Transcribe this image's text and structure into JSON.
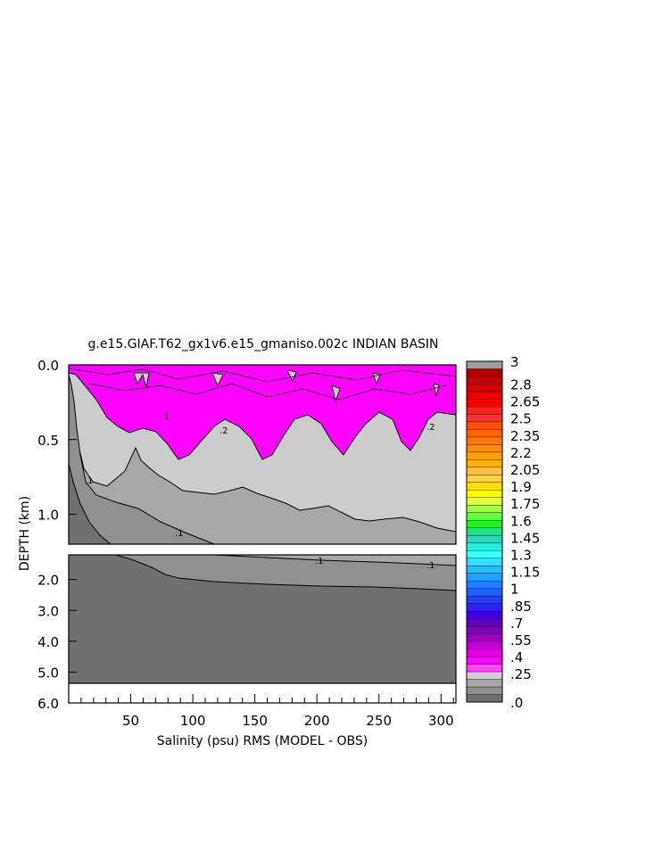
{
  "chart_data": {
    "type": "heatmap",
    "title": "g.e15.GIAF.T62_gx1v6.e15_gmaniso.002c INDIAN BASIN",
    "xlabel": "Salinity (psu) RMS (MODEL - OBS)",
    "ylabel": "DEPTH (km)",
    "x_ticks": [
      "50",
      "100",
      "150",
      "200",
      "250",
      "300"
    ],
    "x_tick_values": [
      50,
      100,
      150,
      200,
      250,
      300
    ],
    "xlim": [
      0,
      312
    ],
    "y_ticks_upper": [
      "0.0",
      "0.5",
      "1.0"
    ],
    "y_tick_values_upper": [
      0.0,
      0.5,
      1.0
    ],
    "ylim_upper": [
      0.0,
      1.2
    ],
    "y_ticks_lower": [
      "2.0",
      "3.0",
      "4.0",
      "5.0",
      "6.0"
    ],
    "y_tick_values_lower": [
      2.0,
      3.0,
      4.0,
      5.0,
      6.0
    ],
    "ylim_lower": [
      1.2,
      6.0
    ],
    "contour_labels": [
      ".1",
      ".1",
      ".1",
      ".1",
      ".1",
      ".2",
      ".2"
    ],
    "colorbar": {
      "labels": [
        "3",
        "2.8",
        "2.65",
        "2.5",
        "2.35",
        "2.2",
        "2.05",
        "1.9",
        "1.75",
        "1.6",
        "1.45",
        "1.3",
        "1.15",
        "1",
        ".85",
        ".7",
        ".55",
        ".4",
        ".25",
        ".0"
      ],
      "label_values": [
        3,
        2.8,
        2.65,
        2.5,
        2.35,
        2.2,
        2.05,
        1.9,
        1.75,
        1.6,
        1.45,
        1.3,
        1.15,
        1,
        0.85,
        0.7,
        0.55,
        0.4,
        0.25,
        0.0
      ],
      "colors_top_to_bottom": [
        "#a0a0a0",
        "#b00000",
        "#c80000",
        "#d80000",
        "#e80000",
        "#f80000",
        "#ff2020",
        "#ff3030",
        "#ff5000",
        "#ff6400",
        "#ff7800",
        "#ff8c00",
        "#ffa000",
        "#ffb000",
        "#ffc040",
        "#ffd040",
        "#ffe000",
        "#ffff00",
        "#e0ff40",
        "#a0ff40",
        "#60ff40",
        "#20f020",
        "#20e080",
        "#20e0c0",
        "#20f0e0",
        "#40ffff",
        "#30e0ff",
        "#20c0ff",
        "#20a0ff",
        "#2080ff",
        "#2060ff",
        "#2040ff",
        "#3020ff",
        "#4000e0",
        "#6000c0",
        "#8000c0",
        "#a000c0",
        "#c000d0",
        "#e000e0",
        "#ff00ff",
        "#ff40ff",
        "#d0d0d0",
        "#a8a8a8",
        "#909090",
        "#707070"
      ]
    }
  }
}
